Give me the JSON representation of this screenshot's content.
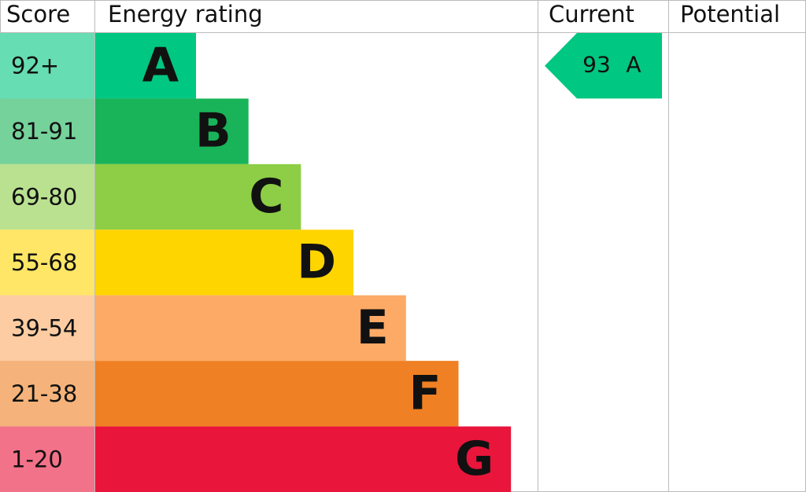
{
  "chart_data": {
    "type": "epc",
    "headers": [
      "Score",
      "Energy rating",
      "Current",
      "Potential"
    ],
    "bands": [
      {
        "score": "92+",
        "letter": "A",
        "color": "#00c781"
      },
      {
        "score": "81-91",
        "letter": "B",
        "color": "#19b459"
      },
      {
        "score": "69-80",
        "letter": "C",
        "color": "#8dce46"
      },
      {
        "score": "55-68",
        "letter": "D",
        "color": "#ffd500"
      },
      {
        "score": "39-54",
        "letter": "E",
        "color": "#fcaa65"
      },
      {
        "score": "21-38",
        "letter": "F",
        "color": "#ef8023"
      },
      {
        "score": "1-20",
        "letter": "G",
        "color": "#e9153b"
      }
    ],
    "current": {
      "value": 93,
      "letter": "A"
    }
  }
}
